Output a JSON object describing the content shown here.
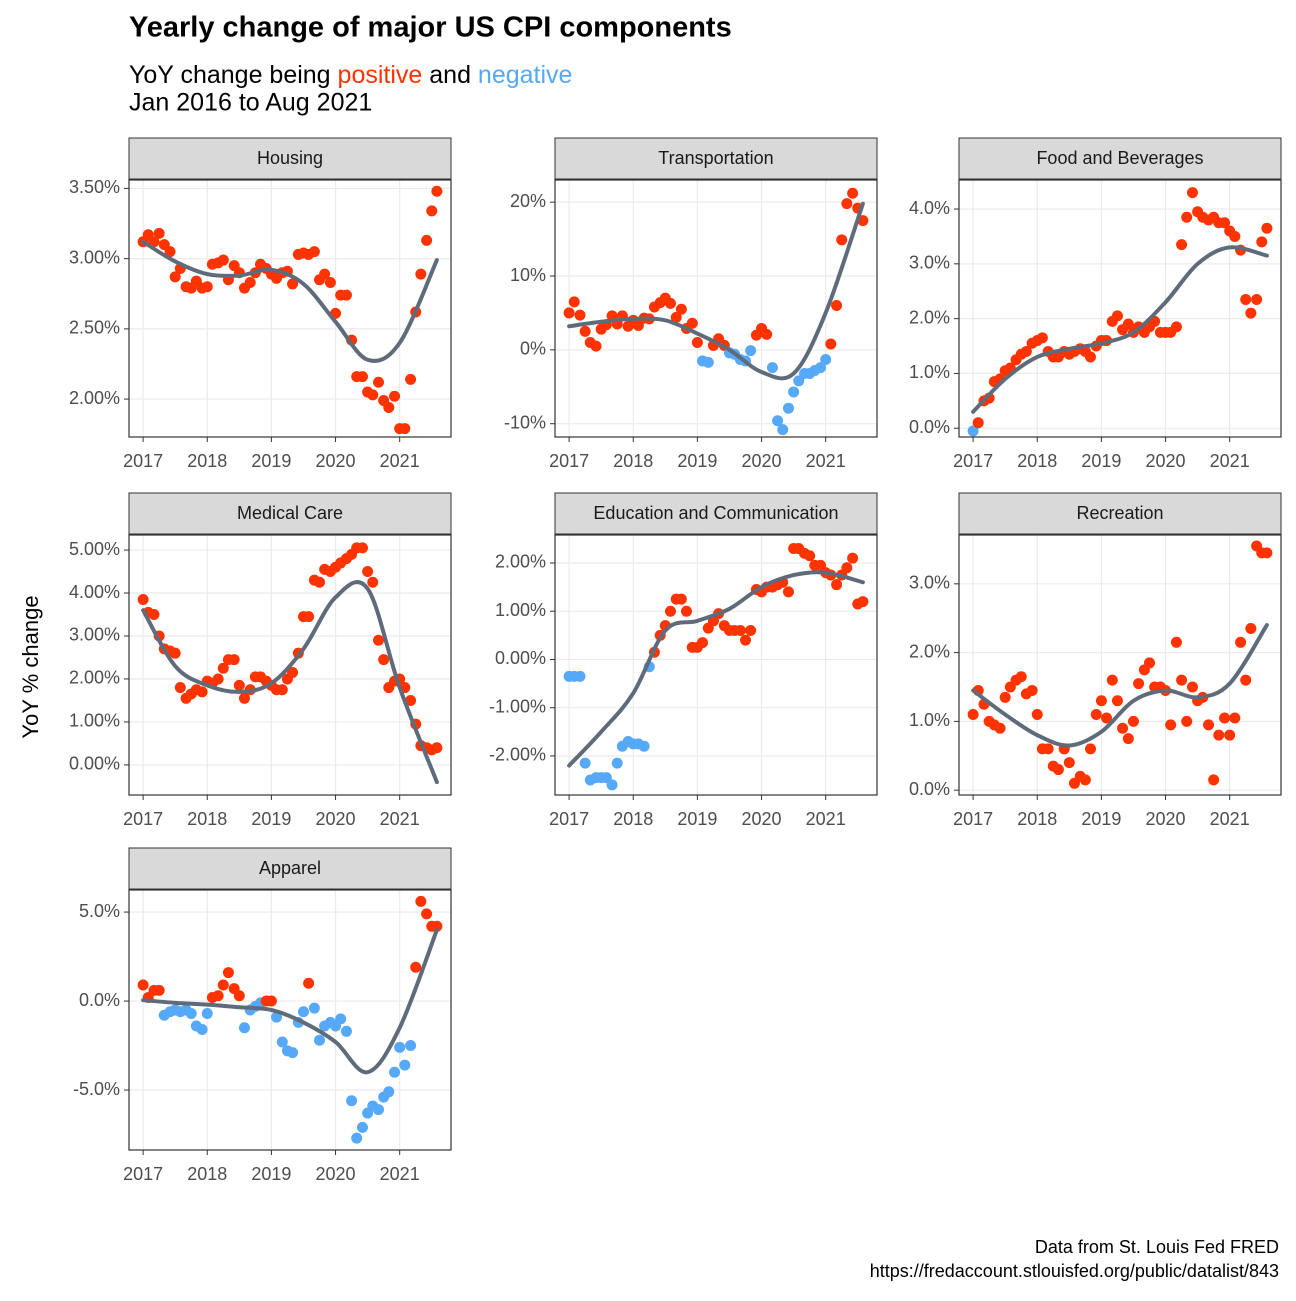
{
  "chart_data": {
    "title": "Yearly change of major US CPI components",
    "subtitle": [
      "YoY change being ",
      "positive",
      " and ",
      "negative"
    ],
    "subtitle2": "Jan 2016 to Aug 2021",
    "y_label": "YoY % change",
    "caption": [
      "Data from St. Louis Fed FRED",
      "https://fredaccount.stlouisfed.org/public/datalist/843"
    ],
    "positive_color": "#ff3300",
    "negative_color": "#56a8f8",
    "trend_color": "#5f6b7a",
    "grid": true,
    "x": [
      2017,
      2017.08,
      2017.17,
      2017.25,
      2017.33,
      2017.42,
      2017.5,
      2017.58,
      2017.67,
      2017.75,
      2017.83,
      2017.92,
      2018,
      2018.08,
      2018.17,
      2018.25,
      2018.33,
      2018.42,
      2018.5,
      2018.58,
      2018.67,
      2018.75,
      2018.83,
      2018.92,
      2019,
      2019.08,
      2019.17,
      2019.25,
      2019.33,
      2019.42,
      2019.5,
      2019.58,
      2019.67,
      2019.75,
      2019.83,
      2019.92,
      2020,
      2020.08,
      2020.17,
      2020.25,
      2020.33,
      2020.42,
      2020.5,
      2020.58,
      2020.67,
      2020.75,
      2020.83,
      2020.92,
      2021,
      2021.08,
      2021.17,
      2021.25,
      2021.33,
      2021.42,
      2021.5,
      2021.58
    ],
    "trend_x": [
      2017,
      2017.5,
      2018,
      2018.5,
      2019,
      2019.5,
      2020,
      2020.5,
      2021,
      2021.58
    ],
    "xlim": [
      2016.78,
      2021.8
    ],
    "xticks": [
      2017,
      2018,
      2019,
      2020,
      2021
    ],
    "panels": [
      {
        "type": "scatter",
        "title": "Housing",
        "values": [
          3.12,
          3.17,
          3.12,
          3.18,
          3.1,
          3.05,
          2.87,
          2.93,
          2.8,
          2.79,
          2.84,
          2.79,
          2.8,
          2.96,
          2.97,
          2.99,
          2.85,
          2.95,
          2.9,
          2.79,
          2.83,
          2.9,
          2.96,
          2.93,
          2.89,
          2.86,
          2.9,
          2.91,
          2.82,
          3.03,
          3.04,
          3.03,
          3.05,
          2.85,
          2.89,
          2.83,
          2.61,
          2.74,
          2.74,
          2.42,
          2.16,
          2.16,
          2.05,
          2.03,
          2.12,
          1.99,
          1.94,
          2.02,
          1.79,
          1.79,
          2.14,
          2.62,
          2.89,
          3.13,
          3.34,
          3.48
        ],
        "trend": [
          3.12,
          2.98,
          2.89,
          2.88,
          2.92,
          2.82,
          2.55,
          2.28,
          2.4,
          2.99
        ],
        "ylim": [
          1.73,
          3.56
        ],
        "yticks": [
          {
            "value": 2,
            "label": "2.00%"
          },
          {
            "value": 2.5,
            "label": "2.50%"
          },
          {
            "value": 3,
            "label": "3.00%"
          },
          {
            "value": 3.5,
            "label": "3.50%"
          }
        ]
      },
      {
        "type": "scatter",
        "title": "Transportation",
        "values": [
          5,
          6.5,
          4.7,
          2.5,
          1,
          0.5,
          2.8,
          3.4,
          4.6,
          3.5,
          4.6,
          3.2,
          4,
          3.3,
          4.3,
          4.2,
          5.8,
          6.4,
          7,
          6.3,
          4.4,
          5.5,
          2.9,
          3.6,
          1,
          -1.5,
          -1.7,
          0.6,
          1.5,
          0.6,
          -0.4,
          -0.6,
          -1.3,
          -1.5,
          -0.1,
          2,
          2.9,
          2.1,
          -2.4,
          -9.6,
          -10.8,
          -7.9,
          -5.7,
          -4.2,
          -3.2,
          -3.2,
          -2.8,
          -2.4,
          -1.3,
          0.8,
          6,
          14.9,
          19.8,
          21.2,
          19.2,
          17.5
        ],
        "trend": [
          3.2,
          3.8,
          4.2,
          4,
          2.2,
          0,
          -3,
          -3.2,
          5,
          19.8
        ],
        "ylim": [
          -11.8,
          23
        ],
        "yticks": [
          {
            "value": -10,
            "label": "-10%"
          },
          {
            "value": 0,
            "label": "0%"
          },
          {
            "value": 10,
            "label": "10%"
          },
          {
            "value": 20,
            "label": "20%"
          }
        ]
      },
      {
        "type": "scatter",
        "title": "Food and Beverages",
        "values": [
          -0.05,
          0.1,
          0.5,
          0.55,
          0.85,
          0.9,
          1.05,
          1.1,
          1.25,
          1.35,
          1.4,
          1.55,
          1.6,
          1.65,
          1.4,
          1.3,
          1.3,
          1.4,
          1.35,
          1.4,
          1.45,
          1.4,
          1.3,
          1.5,
          1.6,
          1.6,
          1.95,
          2.05,
          1.8,
          1.9,
          1.75,
          1.85,
          1.75,
          1.85,
          1.95,
          1.75,
          1.75,
          1.75,
          1.85,
          3.35,
          3.85,
          4.3,
          3.95,
          3.85,
          3.8,
          3.85,
          3.75,
          3.75,
          3.6,
          3.5,
          3.25,
          2.35,
          2.1,
          2.35,
          3.4,
          3.65
        ],
        "trend": [
          0.3,
          0.9,
          1.3,
          1.45,
          1.55,
          1.75,
          2.3,
          3,
          3.3,
          3.15
        ],
        "ylim": [
          -0.16,
          4.53
        ],
        "yticks": [
          {
            "value": 0,
            "label": "0.0%"
          },
          {
            "value": 1,
            "label": "1.0%"
          },
          {
            "value": 2,
            "label": "2.0%"
          },
          {
            "value": 3,
            "label": "3.0%"
          },
          {
            "value": 4,
            "label": "4.0%"
          }
        ]
      },
      {
        "type": "scatter",
        "title": "Medical Care",
        "values": [
          3.85,
          3.55,
          3.5,
          3,
          2.7,
          2.65,
          2.6,
          1.8,
          1.55,
          1.65,
          1.75,
          1.7,
          1.95,
          1.9,
          2,
          2.25,
          2.45,
          2.45,
          1.85,
          1.55,
          1.75,
          2.05,
          2.05,
          1.95,
          1.85,
          1.75,
          1.75,
          2,
          2.15,
          2.6,
          3.45,
          3.45,
          4.3,
          4.25,
          4.55,
          4.5,
          4.6,
          4.7,
          4.8,
          4.9,
          5.05,
          5.05,
          4.5,
          4.25,
          2.9,
          2.45,
          1.8,
          1.95,
          2,
          1.8,
          1.5,
          0.95,
          0.45,
          0.4,
          0.35,
          0.4
        ],
        "trend": [
          3.6,
          2.3,
          1.85,
          1.7,
          1.9,
          2.7,
          3.9,
          4.1,
          1.8,
          -0.4
        ],
        "ylim": [
          -0.7,
          5.35
        ],
        "yticks": [
          {
            "value": 0,
            "label": "0.00%"
          },
          {
            "value": 1,
            "label": "1.00%"
          },
          {
            "value": 2,
            "label": "2.00%"
          },
          {
            "value": 3,
            "label": "3.00%"
          },
          {
            "value": 4,
            "label": "4.00%"
          },
          {
            "value": 5,
            "label": "5.00%"
          }
        ]
      },
      {
        "type": "scatter",
        "title": "Education and Communication",
        "values": [
          -0.35,
          -0.35,
          -0.35,
          -2.15,
          -2.5,
          -2.45,
          -2.45,
          -2.45,
          -2.6,
          -2.15,
          -1.8,
          -1.7,
          -1.75,
          -1.75,
          -1.8,
          -0.15,
          0.15,
          0.5,
          0.7,
          1,
          1.25,
          1.25,
          1,
          0.25,
          0.25,
          0.35,
          0.65,
          0.8,
          0.95,
          0.7,
          0.6,
          0.6,
          0.6,
          0.4,
          0.6,
          1.45,
          1.4,
          1.5,
          1.5,
          1.55,
          1.6,
          1.4,
          2.3,
          2.3,
          2.2,
          2.15,
          1.95,
          1.95,
          1.8,
          1.75,
          1.55,
          1.75,
          1.9,
          2.1,
          1.15,
          1.2
        ],
        "trend": [
          -2.2,
          -1.5,
          -0.7,
          0.6,
          0.8,
          1.05,
          1.5,
          1.75,
          1.8,
          1.6
        ],
        "ylim": [
          -2.81,
          2.58
        ],
        "yticks": [
          {
            "value": -2,
            "label": "-2.00%"
          },
          {
            "value": -1,
            "label": "-1.00%"
          },
          {
            "value": 0,
            "label": "0.00%"
          },
          {
            "value": 1,
            "label": "1.00%"
          },
          {
            "value": 2,
            "label": "2.00%"
          }
        ]
      },
      {
        "type": "scatter",
        "title": "Recreation",
        "values": [
          1.1,
          1.45,
          1.25,
          1,
          0.95,
          0.9,
          1.35,
          1.5,
          1.6,
          1.65,
          1.4,
          1.45,
          1.1,
          0.6,
          0.6,
          0.35,
          0.3,
          0.6,
          0.4,
          0.1,
          0.2,
          0.15,
          0.6,
          1.1,
          1.3,
          1.05,
          1.6,
          1.3,
          0.9,
          0.75,
          1,
          1.55,
          1.75,
          1.85,
          1.5,
          1.5,
          1.45,
          0.95,
          2.15,
          1.6,
          1,
          1.5,
          1.3,
          1.35,
          0.95,
          0.15,
          0.8,
          1.05,
          0.8,
          1.05,
          2.15,
          1.6,
          2.35,
          3.55,
          3.45,
          3.45
        ],
        "trend": [
          1.45,
          1.1,
          0.8,
          0.65,
          0.85,
          1.3,
          1.45,
          1.35,
          1.55,
          2.4
        ],
        "ylim": [
          -0.07,
          3.71
        ],
        "yticks": [
          {
            "value": 0,
            "label": "0.0%"
          },
          {
            "value": 1,
            "label": "1.0%"
          },
          {
            "value": 2,
            "label": "2.0%"
          },
          {
            "value": 3,
            "label": "3.0%"
          }
        ]
      },
      {
        "type": "scatter",
        "title": "Apparel",
        "values": [
          0.9,
          0.2,
          0.6,
          0.6,
          -0.8,
          -0.6,
          -0.5,
          -0.6,
          -0.5,
          -0.7,
          -1.4,
          -1.6,
          -0.7,
          0.2,
          0.3,
          0.9,
          1.6,
          0.7,
          0.3,
          -1.5,
          -0.5,
          -0.3,
          -0.1,
          0,
          0,
          -0.9,
          -2.3,
          -2.8,
          -2.9,
          -1.2,
          -0.6,
          1,
          -0.4,
          -2.2,
          -1.4,
          -1.2,
          -1.4,
          -1,
          -1.7,
          -5.6,
          -7.7,
          -7.1,
          -6.3,
          -5.9,
          -6.1,
          -5.4,
          -5.1,
          -4,
          -2.6,
          -3.6,
          -2.5,
          1.9,
          5.6,
          4.9,
          4.2,
          4.2
        ],
        "trend": [
          0.05,
          -0.1,
          -0.2,
          -0.35,
          -0.5,
          -1.2,
          -2.3,
          -4,
          -1.5,
          4
        ],
        "ylim": [
          -8.37,
          6.24
        ],
        "yticks": [
          {
            "value": -5,
            "label": "-5.0%"
          },
          {
            "value": 0,
            "label": "0.0%"
          },
          {
            "value": 5,
            "label": "5.0%"
          }
        ]
      }
    ]
  }
}
